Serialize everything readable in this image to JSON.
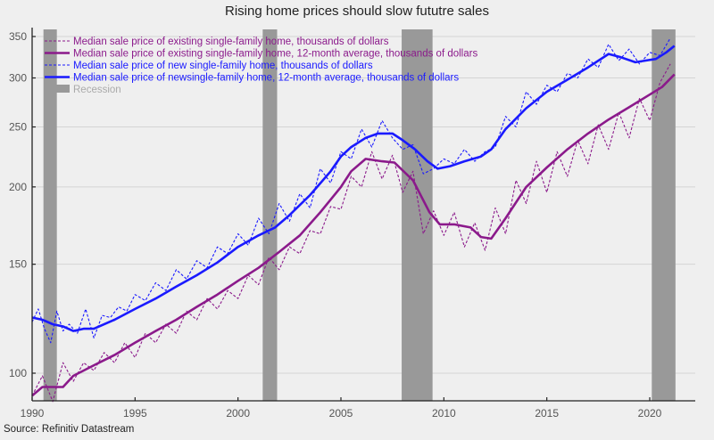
{
  "chart_data": {
    "type": "line",
    "title": "Rising home prices should slow fututre sales",
    "source": "Source: Refinitiv Datastream",
    "xlabel": "",
    "ylabel": "",
    "yscale": "log",
    "xlim": [
      1990,
      2022.2
    ],
    "ylim": [
      90,
      360
    ],
    "grid": "horizontal",
    "legend_position": "top-left",
    "x_ticks": [
      "1990",
      "1995",
      "2000",
      "2005",
      "2010",
      "2015",
      "2020"
    ],
    "y_ticks": [
      "100",
      "150",
      "200",
      "250",
      "300",
      "350"
    ],
    "recessions": [
      {
        "start": 1990.55,
        "end": 1991.2
      },
      {
        "start": 2001.2,
        "end": 2001.9
      },
      {
        "start": 2007.95,
        "end": 2009.45
      },
      {
        "start": 2020.1,
        "end": 2021.25
      }
    ],
    "recession_label": "Recession",
    "recession_color": "#999999",
    "series": [
      {
        "name": "Median sale price of existing single-family home, thousands of dollars",
        "color": "#8b1a8b",
        "style": "dashed",
        "x": [
          1990.0,
          1990.5,
          1991.0,
          1991.5,
          1992.0,
          1992.5,
          1993.0,
          1993.5,
          1994.0,
          1994.5,
          1995.0,
          1995.5,
          1996.0,
          1996.5,
          1997.0,
          1997.5,
          1998.0,
          1998.5,
          1999.0,
          1999.5,
          2000.0,
          2000.5,
          2001.0,
          2001.5,
          2002.0,
          2002.5,
          2003.0,
          2003.5,
          2004.0,
          2004.5,
          2005.0,
          2005.5,
          2006.0,
          2006.5,
          2007.0,
          2007.5,
          2008.0,
          2008.5,
          2009.0,
          2009.5,
          2010.0,
          2010.5,
          2011.0,
          2011.5,
          2012.0,
          2012.5,
          2013.0,
          2013.5,
          2014.0,
          2014.5,
          2015.0,
          2015.5,
          2016.0,
          2016.5,
          2017.0,
          2017.5,
          2018.0,
          2018.5,
          2019.0,
          2019.5,
          2020.0,
          2020.5,
          2021.0
        ],
        "values": [
          92,
          99,
          90,
          104,
          97,
          104,
          101,
          108,
          104,
          112,
          106,
          116,
          112,
          120,
          116,
          126,
          122,
          132,
          127,
          136,
          132,
          144,
          139,
          154,
          147,
          160,
          156,
          170,
          168,
          186,
          184,
          208,
          200,
          228,
          206,
          225,
          196,
          212,
          168,
          183,
          167,
          182,
          160,
          175,
          158,
          185,
          168,
          205,
          188,
          220,
          196,
          228,
          208,
          238,
          218,
          252,
          230,
          264,
          240,
          278,
          256,
          295,
          316
        ]
      },
      {
        "name": "Median sale price of existing single-family home, 12-month average, thousands of dollars",
        "color": "#8b1a8b",
        "style": "solid",
        "x": [
          1990.0,
          1990.5,
          1991.0,
          1991.5,
          1992.0,
          1993.0,
          1994.0,
          1995.0,
          1996.0,
          1997.0,
          1998.0,
          1999.0,
          2000.0,
          2001.0,
          2002.0,
          2003.0,
          2004.0,
          2005.0,
          2005.5,
          2006.2,
          2007.0,
          2007.6,
          2008.5,
          2009.3,
          2009.8,
          2010.5,
          2011.3,
          2011.8,
          2012.3,
          2013.0,
          2014.0,
          2015.0,
          2016.0,
          2017.0,
          2018.0,
          2019.0,
          2020.0,
          2020.6,
          2021.2
        ],
        "values": [
          92,
          95,
          95,
          95,
          99,
          103,
          107,
          112,
          117,
          122,
          128,
          134,
          141,
          148,
          157,
          167,
          182,
          200,
          212,
          222,
          220,
          219,
          205,
          182,
          174,
          174,
          172,
          166,
          165,
          178,
          200,
          215,
          230,
          244,
          257,
          269,
          282,
          290,
          304
        ]
      },
      {
        "name": "Median sale price of new single-family home, thousands of dollars",
        "color": "#1a1aff",
        "style": "dashed",
        "x": [
          1990.0,
          1990.3,
          1990.6,
          1990.9,
          1991.2,
          1991.5,
          1991.8,
          1992.2,
          1992.6,
          1993.0,
          1993.4,
          1993.8,
          1994.2,
          1994.6,
          1995.0,
          1995.5,
          1996.0,
          1996.5,
          1997.0,
          1997.5,
          1998.0,
          1998.5,
          1999.0,
          1999.5,
          2000.0,
          2000.5,
          2001.0,
          2001.5,
          2002.0,
          2002.5,
          2003.0,
          2003.5,
          2004.0,
          2004.5,
          2005.0,
          2005.5,
          2006.0,
          2006.5,
          2007.0,
          2007.5,
          2008.0,
          2008.5,
          2009.0,
          2009.5,
          2010.0,
          2010.5,
          2011.0,
          2011.5,
          2012.0,
          2012.5,
          2013.0,
          2013.5,
          2014.0,
          2014.5,
          2015.0,
          2015.5,
          2016.0,
          2016.5,
          2017.0,
          2017.5,
          2018.0,
          2018.5,
          2019.0,
          2019.5,
          2020.0,
          2020.5,
          2021.0
        ],
        "values": [
          121,
          127,
          118,
          112,
          126,
          117,
          120,
          116,
          127,
          114,
          124,
          123,
          128,
          126,
          134,
          131,
          140,
          136,
          147,
          142,
          152,
          148,
          160,
          156,
          168,
          161,
          178,
          168,
          188,
          176,
          195,
          185,
          214,
          203,
          228,
          222,
          248,
          232,
          256,
          240,
          230,
          234,
          210,
          214,
          222,
          218,
          230,
          220,
          228,
          232,
          260,
          250,
          285,
          272,
          292,
          285,
          305,
          300,
          322,
          312,
          340,
          320,
          334,
          316,
          330,
          326,
          348
        ]
      },
      {
        "name": "Median sale price of newsingle-family home, 12-month average, thousands of dollars",
        "color": "#1a1aff",
        "style": "solid",
        "x": [
          1990.0,
          1990.5,
          1991.0,
          1991.5,
          1992.0,
          1992.5,
          1993.0,
          1994.0,
          1995.0,
          1996.0,
          1997.0,
          1998.0,
          1999.0,
          2000.0,
          2001.0,
          2001.8,
          2002.5,
          2003.5,
          2004.5,
          2005.0,
          2005.5,
          2006.2,
          2006.8,
          2007.5,
          2008.0,
          2008.6,
          2009.2,
          2009.7,
          2010.3,
          2011.0,
          2011.8,
          2012.3,
          2013.0,
          2014.0,
          2015.0,
          2016.0,
          2017.0,
          2018.0,
          2018.6,
          2019.3,
          2019.8,
          2020.3,
          2020.8,
          2021.2
        ],
        "values": [
          123,
          122,
          120,
          119,
          117,
          118,
          118,
          122,
          127,
          132,
          138,
          144,
          151,
          160,
          167,
          172,
          180,
          194,
          212,
          224,
          232,
          240,
          244,
          244,
          238,
          230,
          220,
          214,
          216,
          220,
          224,
          230,
          248,
          268,
          285,
          298,
          312,
          328,
          324,
          318,
          320,
          322,
          330,
          338
        ]
      }
    ]
  }
}
